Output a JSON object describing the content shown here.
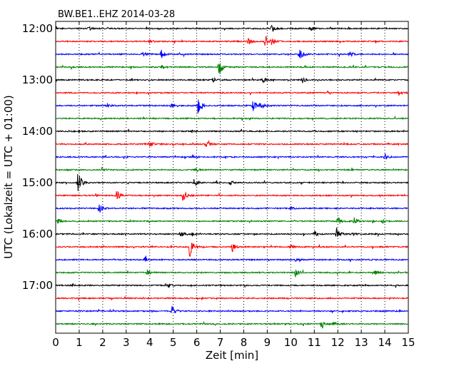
{
  "chart_data": {
    "type": "line",
    "title": "BW.BE1..EHZ 2014-03-28",
    "xlabel": "Zeit  [min]",
    "ylabel": "UTC (Lokalzeit = UTC + 01:00)",
    "xlim": [
      0,
      15
    ],
    "x_ticks": [
      "0",
      "1",
      "2",
      "3",
      "4",
      "5",
      "6",
      "7",
      "8",
      "9",
      "10",
      "11",
      "12",
      "13",
      "14",
      "15"
    ],
    "y_tick_labels": [
      "12:00",
      "13:00",
      "14:00",
      "15:00",
      "16:00",
      "17:00"
    ],
    "grid": "vertical dotted",
    "trace_interval_min": 15,
    "colors_cycle": [
      "#000000",
      "#ff0000",
      "#0000ff",
      "#008000"
    ],
    "series": [
      {
        "start": "12:00",
        "events": [
          [
            1.4,
            0.2
          ],
          [
            9.2,
            0.3
          ],
          [
            10.8,
            0.25
          ]
        ]
      },
      {
        "start": "12:15",
        "events": [
          [
            4.0,
            0.15
          ],
          [
            8.2,
            0.3
          ],
          [
            8.9,
            0.45
          ],
          [
            9.2,
            0.35
          ]
        ]
      },
      {
        "start": "12:30",
        "events": [
          [
            3.7,
            0.25
          ],
          [
            4.5,
            0.45
          ],
          [
            10.4,
            0.5
          ],
          [
            12.5,
            0.3
          ]
        ]
      },
      {
        "start": "12:45",
        "events": [
          [
            4.5,
            0.15
          ],
          [
            6.95,
            0.8
          ]
        ]
      },
      {
        "start": "13:00",
        "events": [
          [
            6.7,
            0.2
          ],
          [
            8.8,
            0.25
          ],
          [
            10.5,
            0.3
          ]
        ]
      },
      {
        "start": "13:15",
        "events": [
          [
            14.6,
            0.2
          ]
        ]
      },
      {
        "start": "13:30",
        "events": [
          [
            2.2,
            0.2
          ],
          [
            4.9,
            0.2
          ],
          [
            6.05,
            0.9
          ],
          [
            8.4,
            0.5
          ],
          [
            8.7,
            0.4
          ]
        ]
      },
      {
        "start": "13:45",
        "events": []
      },
      {
        "start": "14:00",
        "events": [
          [
            5.8,
            0.15
          ]
        ]
      },
      {
        "start": "14:15",
        "events": [
          [
            4.0,
            0.3
          ],
          [
            6.4,
            0.3
          ]
        ]
      },
      {
        "start": "14:30",
        "events": [
          [
            5.8,
            0.2
          ],
          [
            14.0,
            0.3
          ]
        ]
      },
      {
        "start": "14:45",
        "events": [
          [
            2.0,
            0.1
          ],
          [
            6.0,
            0.15
          ]
        ]
      },
      {
        "start": "15:00",
        "events": [
          [
            0.95,
            1.2
          ],
          [
            5.9,
            0.45
          ],
          [
            7.4,
            0.2
          ]
        ]
      },
      {
        "start": "15:15",
        "events": [
          [
            2.6,
            0.55
          ],
          [
            5.4,
            0.75
          ]
        ]
      },
      {
        "start": "15:30",
        "events": [
          [
            1.85,
            0.45
          ],
          [
            10.0,
            0.15
          ]
        ]
      },
      {
        "start": "15:45",
        "events": [
          [
            0.1,
            0.3
          ],
          [
            12.0,
            0.4
          ],
          [
            12.7,
            0.3
          ],
          [
            13.9,
            0.2
          ]
        ]
      },
      {
        "start": "16:00",
        "events": [
          [
            5.3,
            0.3
          ],
          [
            5.8,
            0.2
          ],
          [
            11.0,
            0.25
          ],
          [
            11.95,
            0.55
          ],
          [
            12.6,
            0.2
          ]
        ]
      },
      {
        "start": "16:15",
        "events": [
          [
            5.7,
            0.9
          ],
          [
            7.5,
            0.5
          ],
          [
            10.0,
            0.2
          ]
        ]
      },
      {
        "start": "16:30",
        "events": [
          [
            3.8,
            0.2
          ],
          [
            10.2,
            0.15
          ]
        ]
      },
      {
        "start": "16:45",
        "events": [
          [
            3.9,
            0.25
          ],
          [
            10.2,
            0.4
          ],
          [
            13.6,
            0.2
          ]
        ]
      },
      {
        "start": "17:00",
        "events": [
          [
            4.8,
            0.2
          ]
        ]
      },
      {
        "start": "17:15",
        "events": []
      },
      {
        "start": "17:30",
        "events": [
          [
            4.95,
            0.5
          ]
        ]
      },
      {
        "start": "17:45",
        "events": [
          [
            11.3,
            0.4
          ],
          [
            11.8,
            0.2
          ]
        ]
      }
    ]
  }
}
